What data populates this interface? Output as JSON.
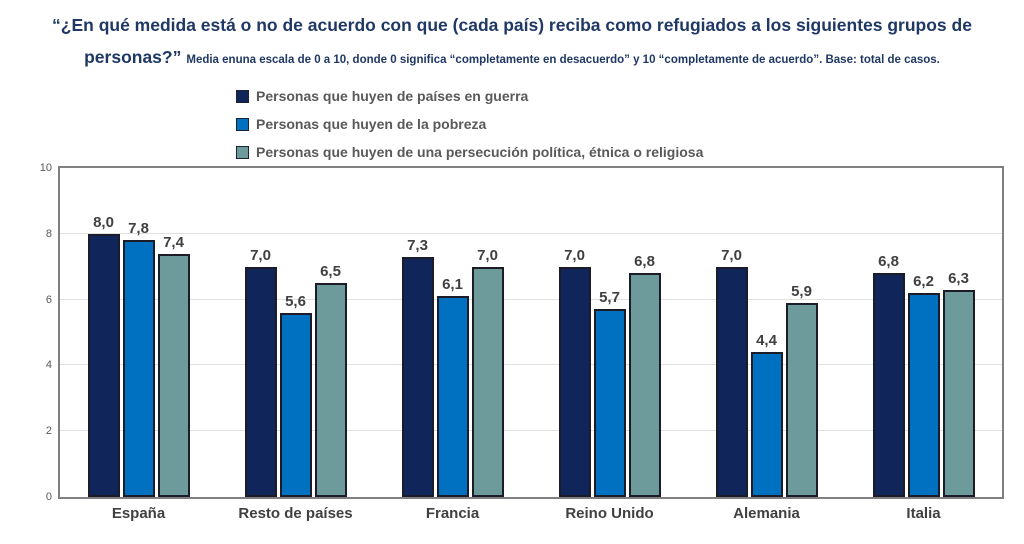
{
  "header": {
    "title": "“¿En qué medida está o no de acuerdo con que (cada país) reciba como refugiados a los siguientes grupos de personas?”",
    "subtitle": "Media enuna escala de 0 a 10, donde 0 significa “completamente en desacuerdo” y 10 “completamente de acuerdo”. Base: total de casos.",
    "title_color": "#1F3864"
  },
  "legend": {
    "items": [
      {
        "label": "Personas que huyen de países en guerra",
        "color": "#10265A"
      },
      {
        "label": "Personas que huyen de la pobreza",
        "color": "#0070C0"
      },
      {
        "label": "Personas que huyen de una persecución política, étnica o religiosa",
        "color": "#6D9A9B"
      }
    ],
    "text_color": "#595959"
  },
  "chart_data": {
    "type": "bar",
    "title": "“¿En qué medida está o no de acuerdo con que (cada país) reciba como refugiados a los siguientes grupos de personas?”",
    "subtitle": "Media enuna escala de 0 a 10, donde 0 significa “completamente en desacuerdo” y 10 “completamente de acuerdo”. Base: total de casos.",
    "categories": [
      "España",
      "Resto de países",
      "Francia",
      "Reino Unido",
      "Alemania",
      "Italia"
    ],
    "series": [
      {
        "name": "Personas que huyen de países en guerra",
        "color": "#10265A",
        "values": [
          8.0,
          7.0,
          7.3,
          7.0,
          7.0,
          6.8
        ],
        "labels": [
          "8,0",
          "7,0",
          "7,3",
          "7,0",
          "7,0",
          "6,8"
        ]
      },
      {
        "name": "Personas que huyen de la pobreza",
        "color": "#0070C0",
        "values": [
          7.8,
          5.6,
          6.1,
          5.7,
          4.4,
          6.2
        ],
        "labels": [
          "7,8",
          "5,6",
          "6,1",
          "5,7",
          "4,4",
          "6,2"
        ]
      },
      {
        "name": "Personas que huyen de una persecución política, étnica o religiosa",
        "color": "#6D9A9B",
        "values": [
          7.4,
          6.5,
          7.0,
          6.8,
          5.9,
          6.3
        ],
        "labels": [
          "7,4",
          "6,5",
          "7,0",
          "6,8",
          "5,9",
          "6,3"
        ]
      }
    ],
    "xlabel": "",
    "ylabel": "",
    "ylim": [
      0,
      10
    ],
    "yticks": [
      0,
      2,
      4,
      6,
      8,
      10
    ],
    "grid": true,
    "legend_position": "top-left",
    "colors": {
      "value_label": "#404040",
      "axis_tick_label": "#595959",
      "category_label": "#404040",
      "gridline": "#E0E0E0",
      "plot_border": "#808080",
      "bar_border": "#1C1C28"
    }
  }
}
